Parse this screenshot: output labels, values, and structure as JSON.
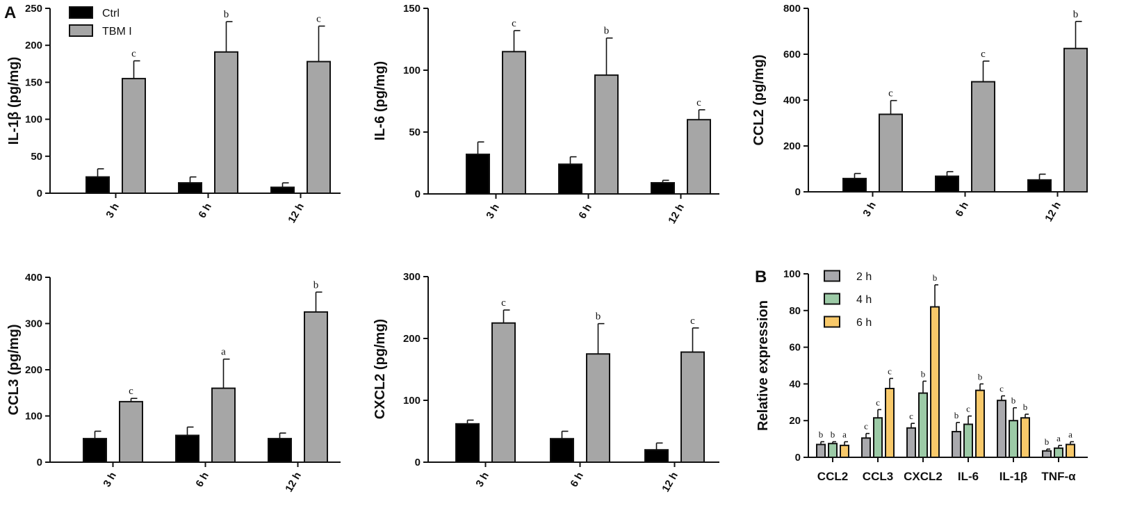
{
  "panel_labels": {
    "a": "A",
    "b": "B"
  },
  "legend_a": [
    {
      "label": "Ctrl",
      "color": "#000000"
    },
    {
      "label": "TBM I",
      "color": "#a6a6a6"
    }
  ],
  "legend_b": [
    {
      "label": "2 h",
      "color": "#a9a9ad"
    },
    {
      "label": "4 h",
      "color": "#9ccaa6"
    },
    {
      "label": "6 h",
      "color": "#f8c96a"
    }
  ],
  "chart_data": [
    {
      "type": "bar",
      "panel": "A",
      "ylabel": "IL-1β (pg/mg)",
      "ylim": [
        0,
        250
      ],
      "yticks": [
        0,
        50,
        100,
        150,
        200,
        250
      ],
      "categories": [
        "3 h",
        "6 h",
        "12 h"
      ],
      "series": [
        {
          "name": "Ctrl",
          "color": "#000000",
          "values": [
            22,
            14,
            8
          ],
          "errors": [
            11,
            8,
            6
          ],
          "labels": [
            "",
            "",
            ""
          ]
        },
        {
          "name": "TBM I",
          "color": "#a6a6a6",
          "values": [
            155,
            191,
            178
          ],
          "errors": [
            24,
            41,
            48
          ],
          "labels": [
            "c",
            "b",
            "c"
          ]
        }
      ]
    },
    {
      "type": "bar",
      "panel": "A",
      "ylabel": "IL-6 (pg/mg)",
      "ylim": [
        0,
        150
      ],
      "yticks": [
        0,
        50,
        100,
        150
      ],
      "categories": [
        "3 h",
        "6 h",
        "12 h"
      ],
      "series": [
        {
          "name": "Ctrl",
          "color": "#000000",
          "values": [
            32,
            24,
            9
          ],
          "errors": [
            10,
            6,
            2
          ],
          "labels": [
            "",
            "",
            ""
          ]
        },
        {
          "name": "TBM I",
          "color": "#a6a6a6",
          "values": [
            115,
            96,
            60
          ],
          "errors": [
            17,
            30,
            8
          ],
          "labels": [
            "c",
            "b",
            "c"
          ]
        }
      ]
    },
    {
      "type": "bar",
      "panel": "A",
      "ylabel": "CCL2 (pg/mg)",
      "ylim": [
        0,
        800
      ],
      "yticks": [
        0,
        200,
        400,
        600,
        800
      ],
      "categories": [
        "3 h",
        "6 h",
        "12 h"
      ],
      "series": [
        {
          "name": "Ctrl",
          "color": "#000000",
          "values": [
            58,
            68,
            52
          ],
          "errors": [
            22,
            20,
            25
          ],
          "labels": [
            "",
            "",
            ""
          ]
        },
        {
          "name": "TBM I",
          "color": "#a6a6a6",
          "values": [
            338,
            480,
            625
          ],
          "errors": [
            60,
            90,
            118
          ],
          "labels": [
            "c",
            "c",
            "b"
          ]
        }
      ]
    },
    {
      "type": "bar",
      "panel": "A",
      "ylabel": "CCL3 (pg/mg)",
      "ylim": [
        0,
        400
      ],
      "yticks": [
        0,
        100,
        200,
        300,
        400
      ],
      "categories": [
        "3 h",
        "6 h",
        "12 h"
      ],
      "series": [
        {
          "name": "Ctrl",
          "color": "#000000",
          "values": [
            51,
            58,
            51
          ],
          "errors": [
            16,
            18,
            12
          ],
          "labels": [
            "",
            "",
            ""
          ]
        },
        {
          "name": "TBM I",
          "color": "#a6a6a6",
          "values": [
            131,
            160,
            325
          ],
          "errors": [
            7,
            63,
            43
          ],
          "labels": [
            "c",
            "a",
            "b"
          ]
        }
      ]
    },
    {
      "type": "bar",
      "panel": "A",
      "ylabel": "CXCL2 (pg/mg)",
      "ylim": [
        0,
        300
      ],
      "yticks": [
        0,
        100,
        200,
        300
      ],
      "categories": [
        "3 h",
        "6 h",
        "12 h"
      ],
      "series": [
        {
          "name": "Ctrl",
          "color": "#000000",
          "values": [
            62,
            38,
            20
          ],
          "errors": [
            6,
            12,
            11
          ],
          "labels": [
            "",
            "",
            ""
          ]
        },
        {
          "name": "TBM I",
          "color": "#a6a6a6",
          "values": [
            225,
            175,
            178
          ],
          "errors": [
            21,
            49,
            39
          ],
          "labels": [
            "c",
            "b",
            "c"
          ]
        }
      ]
    },
    {
      "type": "bar",
      "panel": "B",
      "ylabel": "Relative expression",
      "ylim": [
        0,
        100
      ],
      "yticks": [
        0,
        20,
        40,
        60,
        80,
        100
      ],
      "categories": [
        "CCL2",
        "CCL3",
        "CXCL2",
        "IL-6",
        "IL-1β",
        "TNF-α"
      ],
      "series": [
        {
          "name": "2 h",
          "color": "#a9a9ad",
          "values": [
            7,
            10.5,
            16,
            14,
            31,
            3.5
          ],
          "errors": [
            1.5,
            2.5,
            2.5,
            5,
            2.5,
            1
          ],
          "labels": [
            "b",
            "c",
            "c",
            "b",
            "c",
            "b"
          ]
        },
        {
          "name": "4 h",
          "color": "#9ccaa6",
          "values": [
            7.5,
            21.5,
            35,
            18,
            20,
            5
          ],
          "errors": [
            1,
            4.5,
            6.5,
            4.5,
            7,
            1.5
          ],
          "labels": [
            "b",
            "c",
            "b",
            "c",
            "b",
            "a"
          ]
        },
        {
          "name": "6 h",
          "color": "#f8c96a",
          "values": [
            6.5,
            37.5,
            82,
            36.5,
            21.5,
            7
          ],
          "errors": [
            2,
            5.5,
            12,
            3.5,
            2,
            1.5
          ],
          "labels": [
            "a",
            "c",
            "b",
            "b",
            "b",
            "a"
          ]
        }
      ]
    }
  ]
}
